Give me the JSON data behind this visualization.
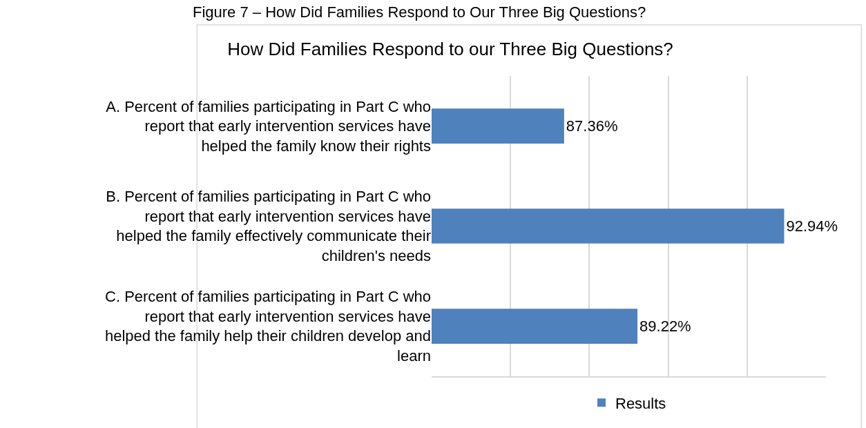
{
  "chart_data": {
    "type": "bar",
    "orientation": "horizontal",
    "title": "How Did Families Respond to our Three Big Questions?",
    "annotations": [
      "Figure 7 – How Did Families Respond to Our Three Big Questions?"
    ],
    "categories": [
      "A. Percent of families participating in Part C who report that early intervention services have helped the family know their rights",
      "B. Percent of families participating in Part C who report that early intervention services have helped the family effectively communicate their children's needs",
      "C. Percent of families participating in Part C who report that early intervention services have helped the family help their children develop and learn"
    ],
    "series": [
      {
        "name": "Results",
        "color": "#4f81bd",
        "values": [
          87.36,
          92.94,
          89.22
        ],
        "value_labels": [
          "87.36%",
          "92.94%",
          "89.22%"
        ]
      }
    ],
    "xlim": [
      84,
      94
    ],
    "grid": "x",
    "tick_labels": "y",
    "legend": "bottom"
  }
}
